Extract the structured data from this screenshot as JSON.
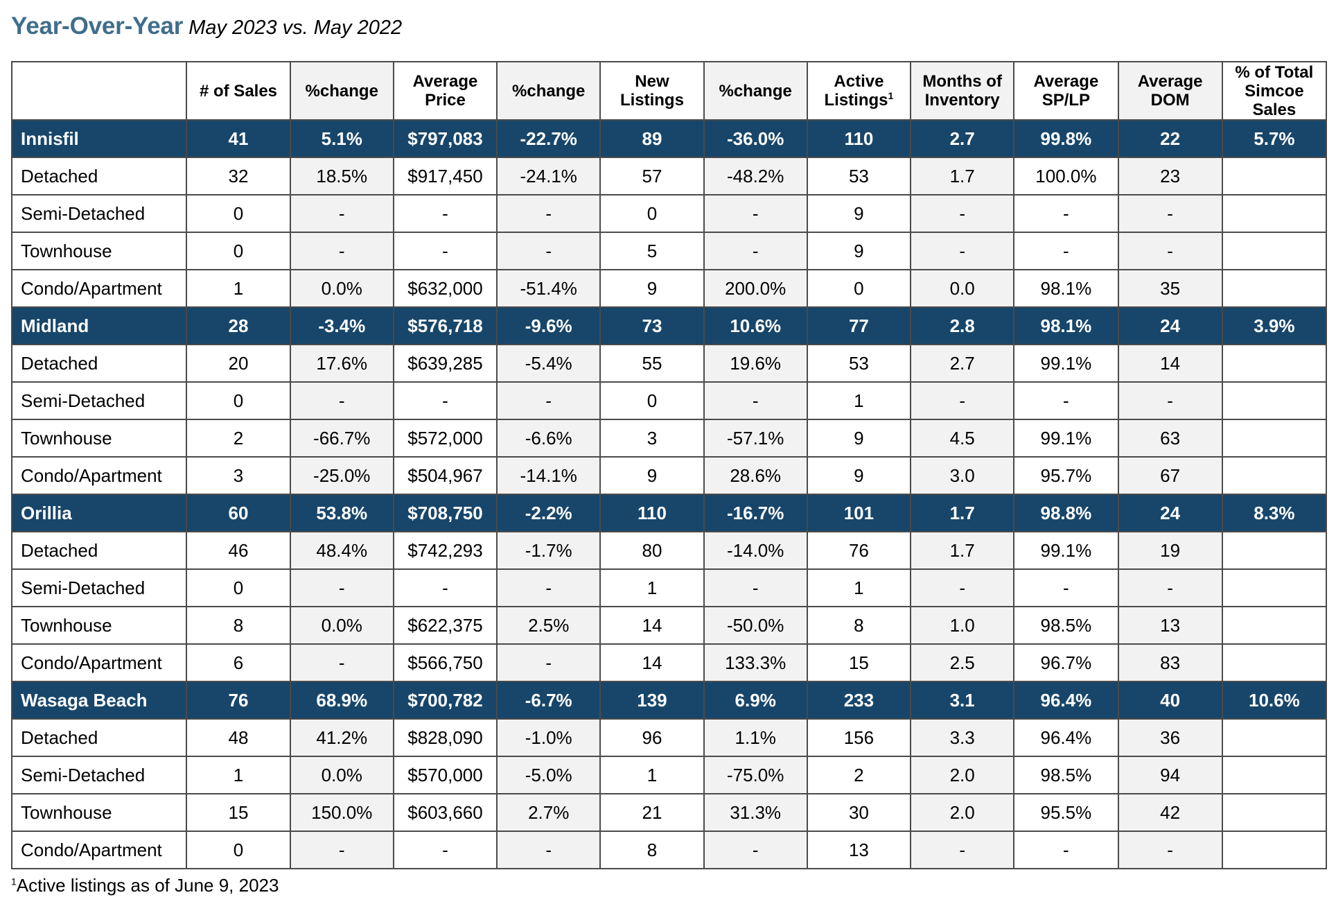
{
  "title": {
    "main": "Year-Over-Year",
    "sub": "May 2023 vs. May 2022"
  },
  "table": {
    "headers": [
      {
        "text": "",
        "sup": ""
      },
      {
        "text": "# of Sales",
        "sup": ""
      },
      {
        "text": "%change",
        "sup": ""
      },
      {
        "text": "Average Price",
        "sup": ""
      },
      {
        "text": "%change",
        "sup": ""
      },
      {
        "text": "New Listings",
        "sup": ""
      },
      {
        "text": "%change",
        "sup": ""
      },
      {
        "text": "Active Listings",
        "sup": "1"
      },
      {
        "text": "Months of Inventory",
        "sup": ""
      },
      {
        "text": "Average SP/LP",
        "sup": ""
      },
      {
        "text": "Average DOM",
        "sup": ""
      },
      {
        "text": "% of Total Simcoe Sales",
        "sup": ""
      }
    ],
    "rows": [
      {
        "type": "muni",
        "cells": [
          "Innisfil",
          "41",
          "5.1%",
          "$797,083",
          "-22.7%",
          "89",
          "-36.0%",
          "110",
          "2.7",
          "99.8%",
          "22",
          "5.7%"
        ]
      },
      {
        "type": "sub",
        "cells": [
          "Detached",
          "32",
          "18.5%",
          "$917,450",
          "-24.1%",
          "57",
          "-48.2%",
          "53",
          "1.7",
          "100.0%",
          "23",
          ""
        ]
      },
      {
        "type": "sub",
        "cells": [
          "Semi-Detached",
          "0",
          "-",
          "-",
          "-",
          "0",
          "-",
          "9",
          "-",
          "-",
          "-",
          ""
        ]
      },
      {
        "type": "sub",
        "cells": [
          "Townhouse",
          "0",
          "-",
          "-",
          "-",
          "5",
          "-",
          "9",
          "-",
          "-",
          "-",
          ""
        ]
      },
      {
        "type": "sub",
        "cells": [
          "Condo/Apartment",
          "1",
          "0.0%",
          "$632,000",
          "-51.4%",
          "9",
          "200.0%",
          "0",
          "0.0",
          "98.1%",
          "35",
          ""
        ]
      },
      {
        "type": "muni",
        "cells": [
          "Midland",
          "28",
          "-3.4%",
          "$576,718",
          "-9.6%",
          "73",
          "10.6%",
          "77",
          "2.8",
          "98.1%",
          "24",
          "3.9%"
        ]
      },
      {
        "type": "sub",
        "cells": [
          "Detached",
          "20",
          "17.6%",
          "$639,285",
          "-5.4%",
          "55",
          "19.6%",
          "53",
          "2.7",
          "99.1%",
          "14",
          ""
        ]
      },
      {
        "type": "sub",
        "cells": [
          "Semi-Detached",
          "0",
          "-",
          "-",
          "-",
          "0",
          "-",
          "1",
          "-",
          "-",
          "-",
          ""
        ]
      },
      {
        "type": "sub",
        "cells": [
          "Townhouse",
          "2",
          "-66.7%",
          "$572,000",
          "-6.6%",
          "3",
          "-57.1%",
          "9",
          "4.5",
          "99.1%",
          "63",
          ""
        ]
      },
      {
        "type": "sub",
        "cells": [
          "Condo/Apartment",
          "3",
          "-25.0%",
          "$504,967",
          "-14.1%",
          "9",
          "28.6%",
          "9",
          "3.0",
          "95.7%",
          "67",
          ""
        ]
      },
      {
        "type": "muni",
        "cells": [
          "Orillia",
          "60",
          "53.8%",
          "$708,750",
          "-2.2%",
          "110",
          "-16.7%",
          "101",
          "1.7",
          "98.8%",
          "24",
          "8.3%"
        ]
      },
      {
        "type": "sub",
        "cells": [
          "Detached",
          "46",
          "48.4%",
          "$742,293",
          "-1.7%",
          "80",
          "-14.0%",
          "76",
          "1.7",
          "99.1%",
          "19",
          ""
        ]
      },
      {
        "type": "sub",
        "cells": [
          "Semi-Detached",
          "0",
          "-",
          "-",
          "-",
          "1",
          "-",
          "1",
          "-",
          "-",
          "-",
          ""
        ]
      },
      {
        "type": "sub",
        "cells": [
          "Townhouse",
          "8",
          "0.0%",
          "$622,375",
          "2.5%",
          "14",
          "-50.0%",
          "8",
          "1.0",
          "98.5%",
          "13",
          ""
        ]
      },
      {
        "type": "sub",
        "cells": [
          "Condo/Apartment",
          "6",
          "-",
          "$566,750",
          "-",
          "14",
          "133.3%",
          "15",
          "2.5",
          "96.7%",
          "83",
          ""
        ]
      },
      {
        "type": "muni",
        "cells": [
          "Wasaga Beach",
          "76",
          "68.9%",
          "$700,782",
          "-6.7%",
          "139",
          "6.9%",
          "233",
          "3.1",
          "96.4%",
          "40",
          "10.6%"
        ]
      },
      {
        "type": "sub",
        "cells": [
          "Detached",
          "48",
          "41.2%",
          "$828,090",
          "-1.0%",
          "96",
          "1.1%",
          "156",
          "3.3",
          "96.4%",
          "36",
          ""
        ]
      },
      {
        "type": "sub",
        "cells": [
          "Semi-Detached",
          "1",
          "0.0%",
          "$570,000",
          "-5.0%",
          "1",
          "-75.0%",
          "2",
          "2.0",
          "98.5%",
          "94",
          ""
        ]
      },
      {
        "type": "sub",
        "cells": [
          "Townhouse",
          "15",
          "150.0%",
          "$603,660",
          "2.7%",
          "21",
          "31.3%",
          "30",
          "2.0",
          "95.5%",
          "42",
          ""
        ]
      },
      {
        "type": "sub",
        "cells": [
          "Condo/Apartment",
          "0",
          "-",
          "-",
          "-",
          "8",
          "-",
          "13",
          "-",
          "-",
          "-",
          ""
        ]
      }
    ]
  },
  "footnote": {
    "marker": "1",
    "text": "Active listings as of June 9, 2023"
  },
  "colors": {
    "title": "#3f6e8b",
    "municipality_row": "#17466a",
    "alt_column": "#f2f2f2",
    "border": "#4a4a4a"
  }
}
